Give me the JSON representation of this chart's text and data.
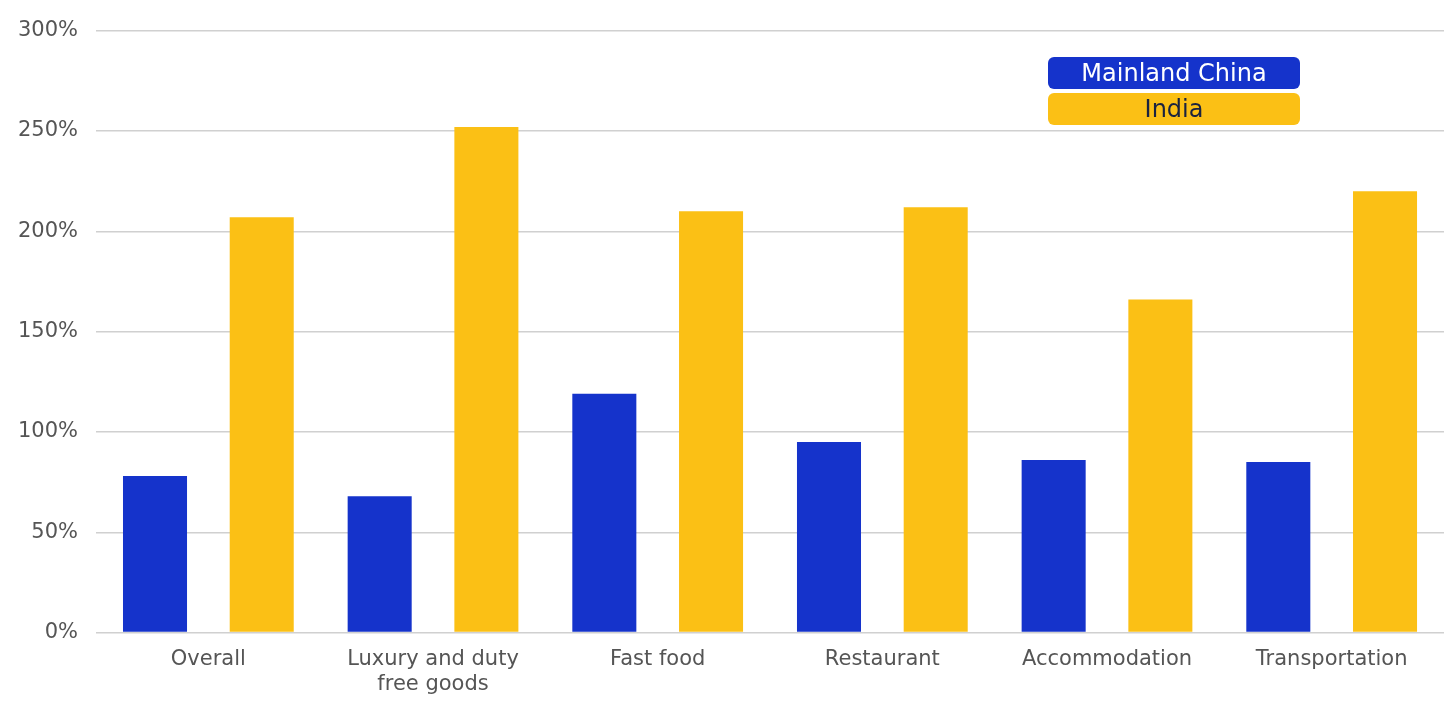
{
  "chart_data": {
    "type": "bar",
    "categories": [
      "Overall",
      "Luxury and duty free goods",
      "Fast food",
      "Restaurant",
      "Accommodation",
      "Transportation"
    ],
    "series": [
      {
        "name": "Mainland China",
        "color": "#1533cb",
        "values": [
          78,
          68,
          119,
          95,
          86,
          85
        ]
      },
      {
        "name": "India",
        "color": "#fbc015",
        "values": [
          207,
          252,
          210,
          212,
          166,
          220
        ]
      }
    ],
    "ylim": [
      0,
      300
    ],
    "yticks": [
      {
        "value": 0,
        "label": "0%"
      },
      {
        "value": 50,
        "label": "50%"
      },
      {
        "value": 100,
        "label": "100%"
      },
      {
        "value": 150,
        "label": "150%"
      },
      {
        "value": 200,
        "label": "200%"
      },
      {
        "value": 250,
        "label": "250%"
      },
      {
        "value": 300,
        "label": "300%"
      }
    ],
    "grid": "y",
    "legend": "top right"
  }
}
